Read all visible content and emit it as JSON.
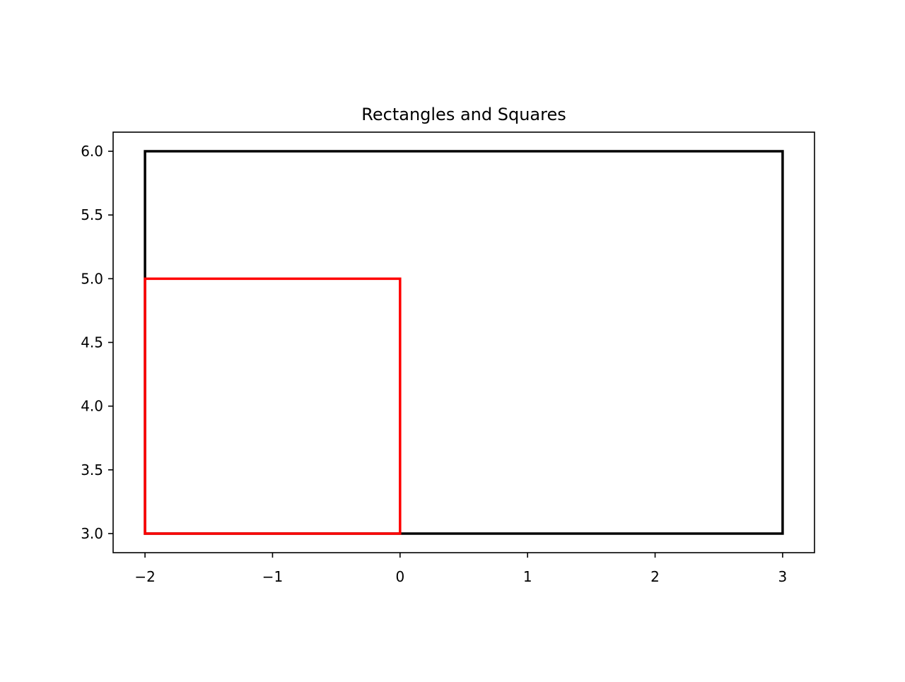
{
  "chart_data": {
    "type": "line",
    "title": "Rectangles and Squares",
    "xlabel": "",
    "ylabel": "",
    "xlim": [
      -2.25,
      3.25
    ],
    "ylim": [
      2.85,
      6.15
    ],
    "xticks": [
      -2,
      -1,
      0,
      1,
      2,
      3
    ],
    "xtick_labels": [
      "−2",
      "−1",
      "0",
      "1",
      "2",
      "3"
    ],
    "yticks": [
      3.0,
      3.5,
      4.0,
      4.5,
      5.0,
      5.5,
      6.0
    ],
    "ytick_labels": [
      "3.0",
      "3.5",
      "4.0",
      "4.5",
      "5.0",
      "5.5",
      "6.0"
    ],
    "grid": false,
    "legend": null,
    "series": [
      {
        "color": "#000000",
        "x": [
          -2,
          3,
          3,
          -2,
          -2
        ],
        "y": [
          3,
          3,
          6,
          6,
          3
        ]
      },
      {
        "color": "#ff0000",
        "x": [
          -2,
          0,
          0,
          -2,
          -2
        ],
        "y": [
          3,
          3,
          5,
          5,
          3
        ]
      }
    ]
  }
}
